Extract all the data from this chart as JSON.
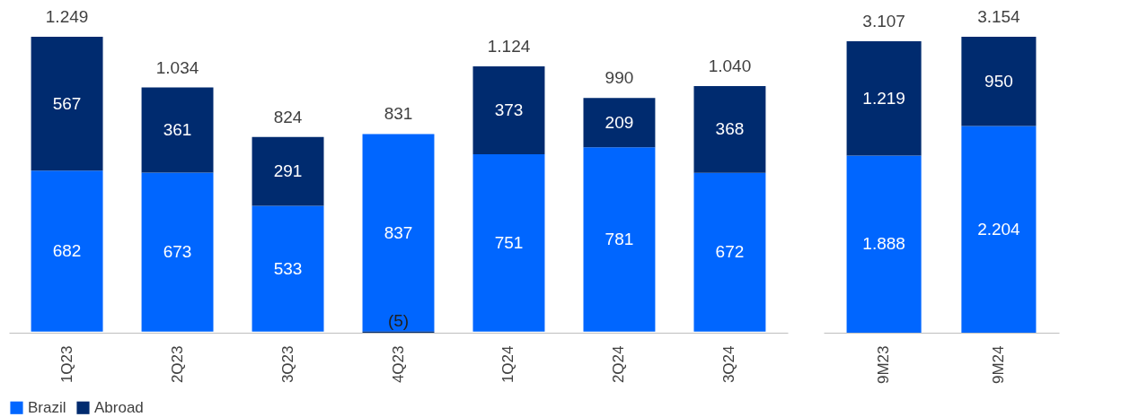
{
  "chart_data": [
    {
      "type": "bar",
      "stacked": true,
      "categories": [
        "1Q23",
        "2Q23",
        "3Q23",
        "4Q23",
        "1Q24",
        "2Q24",
        "3Q24"
      ],
      "legend": "bottom",
      "series": [
        {
          "name": "Brazil",
          "color": "#0066ff",
          "values": [
            682,
            673,
            533,
            837,
            751,
            781,
            672
          ],
          "value_labels": [
            "682",
            "673",
            "533",
            "837",
            "751",
            "781",
            "672"
          ]
        },
        {
          "name": "Abroad",
          "color": "#002b6f",
          "values": [
            567,
            361,
            291,
            -5,
            373,
            209,
            368
          ],
          "value_labels": [
            "567",
            "361",
            "291",
            "(5)",
            "373",
            "209",
            "368"
          ]
        }
      ],
      "totals": [
        "1.249",
        "1.034",
        "824",
        "831",
        "1.124",
        "990",
        "1.040"
      ]
    },
    {
      "type": "bar",
      "stacked": true,
      "categories": [
        "9M23",
        "9M24"
      ],
      "legend": "bottom",
      "series": [
        {
          "name": "Brazil",
          "color": "#0066ff",
          "values": [
            1888,
            2204
          ],
          "value_labels": [
            "1.888",
            "2.204"
          ]
        },
        {
          "name": "Abroad",
          "color": "#002b6f",
          "values": [
            1219,
            950
          ],
          "value_labels": [
            "1.219",
            "950"
          ]
        }
      ],
      "totals": [
        "3.107",
        "3.154"
      ]
    }
  ]
}
